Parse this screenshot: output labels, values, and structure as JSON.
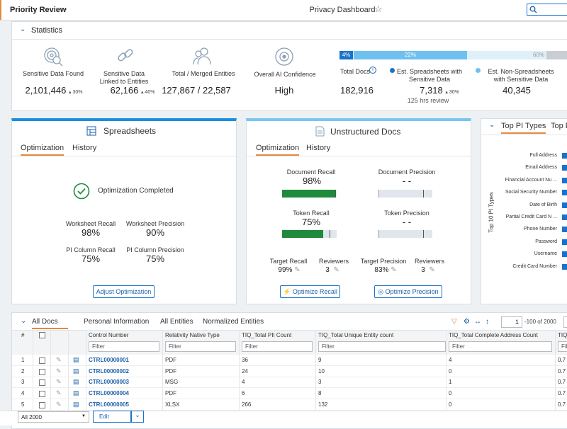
{
  "header": {
    "title": "Priority Review",
    "page": "Privacy Dashboard"
  },
  "statistics": {
    "title": "Statistics",
    "items": [
      {
        "label": "Sensitive Data Found",
        "value": "2,101,446",
        "change": "30%"
      },
      {
        "label": "Sensitive Data Linked to Entities",
        "value": "62,166",
        "change": "40%"
      },
      {
        "label": "Total / Merged Entities",
        "value": "127,867 / 22,587"
      },
      {
        "label": "Overall AI Confidence",
        "value": "High"
      }
    ],
    "distribution": {
      "segments": [
        "4%",
        "22%",
        "60%"
      ],
      "total_label": "Total Docs",
      "total_value": "182,916",
      "spreadsheets": {
        "label": "Est. Spreadsheets with Sensitive Data",
        "value": "7,318",
        "change": "30%",
        "note": "125 hrs review"
      },
      "non_spreadsheets": {
        "label": "Est. Non-Spreadsheets with Sensitive Data",
        "value": "40,345"
      }
    }
  },
  "spreadsheets": {
    "title": "Spreadsheets",
    "tabs": [
      "Optimization",
      "History"
    ],
    "status": "Optimization Completed",
    "metrics": [
      {
        "label": "Worksheet Recall",
        "value": "98%"
      },
      {
        "label": "Worksheet Precision",
        "value": "90%"
      },
      {
        "label": "PI Column Recall",
        "value": "75%"
      },
      {
        "label": "PI Column Precision",
        "value": "75%"
      }
    ],
    "button": "Adjust Optimization"
  },
  "unstructured": {
    "title": "Unstructured Docs",
    "tabs": [
      "Optimization",
      "History"
    ],
    "metrics": [
      {
        "label": "Document Recall",
        "value": "98%"
      },
      {
        "label": "Document Precision",
        "value": "- -"
      },
      {
        "label": "Token Recall",
        "value": "75%"
      },
      {
        "label": "Token Precision",
        "value": "- -"
      }
    ],
    "targets": [
      {
        "label": "Target Recall",
        "value": "99%"
      },
      {
        "label": "Reviewers",
        "value": "3"
      },
      {
        "label": "Target Precision",
        "value": "83%"
      },
      {
        "label": "Reviewers",
        "value": "3"
      }
    ],
    "buttons": [
      "Optimize Recall",
      "Optimize Precision"
    ]
  },
  "top_pi": {
    "tabs": [
      "Top PI Types",
      "Top D"
    ],
    "axis_label": "Top 10 PI Types",
    "categories": [
      "Full Address",
      "Email Address",
      "Financial Account Nu ...",
      "Social Security Number",
      "Date of Birth",
      "Partial Credit Card N ...",
      "Phone Number",
      "Password",
      "Username",
      "Credit Card Number"
    ]
  },
  "table": {
    "tabs": [
      "All Docs",
      "Personal Information",
      "All Entities",
      "Normalized Entities"
    ],
    "page": "1",
    "page_range": "-100 of 2000",
    "columns": [
      "#",
      "Control Number",
      "Relativity Native Type",
      "TIQ_Total PII Count",
      "TIQ_Total Unique Entity count",
      "TIQ_Total Complete Address Count",
      "TIQ"
    ],
    "filter": "Filter",
    "rows": [
      [
        "1",
        "CTRL00000001",
        "PDF",
        "36",
        "9",
        "4",
        "0.7"
      ],
      [
        "2",
        "CTRL00000002",
        "PDF",
        "24",
        "10",
        "0",
        "0.7"
      ],
      [
        "3",
        "CTRL00000003",
        "MSG",
        "4",
        "3",
        "1",
        "0.7"
      ],
      [
        "4",
        "CTRL00000004",
        "PDF",
        "6",
        "8",
        "0",
        "0.7"
      ],
      [
        "5",
        "CTRL00000005",
        "XLSX",
        "266",
        "132",
        "0",
        "0.7"
      ]
    ]
  },
  "footer": {
    "scope": "All 2000",
    "action": "Edit"
  }
}
